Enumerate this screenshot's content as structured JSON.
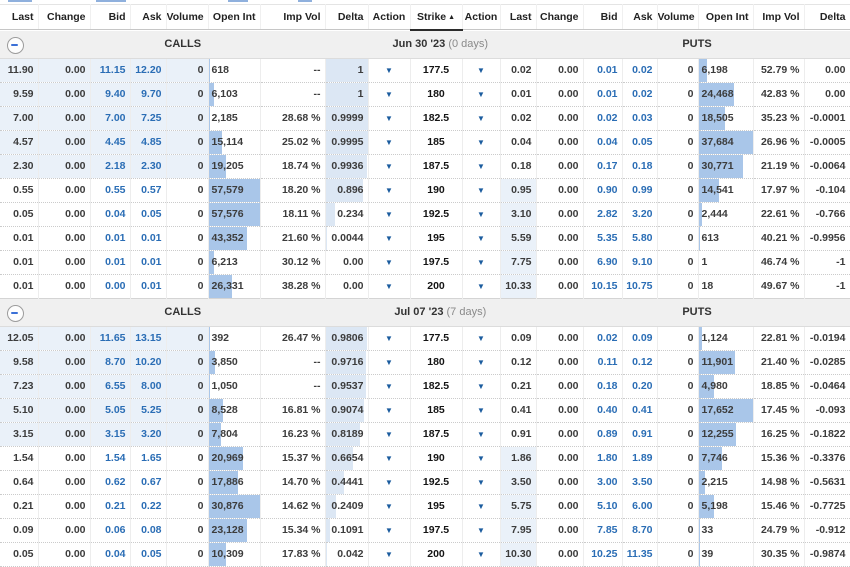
{
  "table": {
    "columns": [
      "Last",
      "Change",
      "Bid",
      "Ask",
      "Volume",
      "Open Int",
      "Imp Vol",
      "Delta",
      "Action",
      "Strike",
      "Action",
      "Last",
      "Change",
      "Bid",
      "Ask",
      "Volume",
      "Open Int",
      "Imp Vol",
      "Delta"
    ],
    "sort_column": "Strike",
    "sort_indicator": "▲"
  },
  "icons": {
    "action_dropdown": "▼"
  },
  "colors": {
    "bid_ask_text": "#2a6db5",
    "open_int_bar": "#a9c6e9",
    "delta_bar": "#dce7f4",
    "itm_highlight": "#eaf1f9",
    "action_arrow": "#1b5c9e",
    "section_header_bg": "#f0f0f0"
  },
  "groups": [
    {
      "calls_label": "CALLS",
      "puts_label": "PUTS",
      "expiry": "Jun 30 '23",
      "days_to_expiry": "(0 days)",
      "rows": [
        {
          "call": {
            "last": "11.90",
            "change": "0.00",
            "bid": "11.15",
            "ask": "12.20",
            "volume": "0",
            "open_int": "618",
            "imp_vol": "--",
            "delta": "1"
          },
          "call_itm": true,
          "strike": "177.5",
          "put": {
            "last": "0.02",
            "change": "0.00",
            "bid": "0.01",
            "ask": "0.02",
            "volume": "0",
            "open_int": "6,198",
            "imp_vol": "52.79 %",
            "delta": "0.00"
          },
          "put_itm": false
        },
        {
          "call": {
            "last": "9.59",
            "change": "0.00",
            "bid": "9.40",
            "ask": "9.70",
            "volume": "0",
            "open_int": "6,103",
            "imp_vol": "--",
            "delta": "1"
          },
          "call_itm": true,
          "strike": "180",
          "put": {
            "last": "0.01",
            "change": "0.00",
            "bid": "0.01",
            "ask": "0.02",
            "volume": "0",
            "open_int": "24,468",
            "imp_vol": "42.83 %",
            "delta": "0.00"
          },
          "put_itm": false
        },
        {
          "call": {
            "last": "7.00",
            "change": "0.00",
            "bid": "7.00",
            "ask": "7.25",
            "volume": "0",
            "open_int": "2,185",
            "imp_vol": "28.68 %",
            "delta": "0.9999"
          },
          "call_itm": true,
          "strike": "182.5",
          "put": {
            "last": "0.02",
            "change": "0.00",
            "bid": "0.02",
            "ask": "0.03",
            "volume": "0",
            "open_int": "18,505",
            "imp_vol": "35.23 %",
            "delta": "-0.0001"
          },
          "put_itm": false
        },
        {
          "call": {
            "last": "4.57",
            "change": "0.00",
            "bid": "4.45",
            "ask": "4.85",
            "volume": "0",
            "open_int": "15,114",
            "imp_vol": "25.02 %",
            "delta": "0.9995"
          },
          "call_itm": true,
          "strike": "185",
          "put": {
            "last": "0.04",
            "change": "0.00",
            "bid": "0.04",
            "ask": "0.05",
            "volume": "0",
            "open_int": "37,684",
            "imp_vol": "26.96 %",
            "delta": "-0.0005"
          },
          "put_itm": false
        },
        {
          "call": {
            "last": "2.30",
            "change": "0.00",
            "bid": "2.18",
            "ask": "2.30",
            "volume": "0",
            "open_int": "19,205",
            "imp_vol": "18.74 %",
            "delta": "0.9936"
          },
          "call_itm": true,
          "strike": "187.5",
          "put": {
            "last": "0.18",
            "change": "0.00",
            "bid": "0.17",
            "ask": "0.18",
            "volume": "0",
            "open_int": "30,771",
            "imp_vol": "21.19 %",
            "delta": "-0.0064"
          },
          "put_itm": false
        },
        {
          "call": {
            "last": "0.55",
            "change": "0.00",
            "bid": "0.55",
            "ask": "0.57",
            "volume": "0",
            "open_int": "57,579",
            "imp_vol": "18.20 %",
            "delta": "0.896"
          },
          "call_itm": false,
          "strike": "190",
          "put": {
            "last": "0.95",
            "change": "0.00",
            "bid": "0.90",
            "ask": "0.99",
            "volume": "0",
            "open_int": "14,541",
            "imp_vol": "17.97 %",
            "delta": "-0.104"
          },
          "put_itm": true
        },
        {
          "call": {
            "last": "0.05",
            "change": "0.00",
            "bid": "0.04",
            "ask": "0.05",
            "volume": "0",
            "open_int": "57,576",
            "imp_vol": "18.11 %",
            "delta": "0.234"
          },
          "call_itm": false,
          "strike": "192.5",
          "put": {
            "last": "3.10",
            "change": "0.00",
            "bid": "2.82",
            "ask": "3.20",
            "volume": "0",
            "open_int": "2,444",
            "imp_vol": "22.61 %",
            "delta": "-0.766"
          },
          "put_itm": true
        },
        {
          "call": {
            "last": "0.01",
            "change": "0.00",
            "bid": "0.01",
            "ask": "0.01",
            "volume": "0",
            "open_int": "43,352",
            "imp_vol": "21.60 %",
            "delta": "0.0044"
          },
          "call_itm": false,
          "strike": "195",
          "put": {
            "last": "5.59",
            "change": "0.00",
            "bid": "5.35",
            "ask": "5.80",
            "volume": "0",
            "open_int": "613",
            "imp_vol": "40.21 %",
            "delta": "-0.9956"
          },
          "put_itm": true
        },
        {
          "call": {
            "last": "0.01",
            "change": "0.00",
            "bid": "0.01",
            "ask": "0.01",
            "volume": "0",
            "open_int": "6,213",
            "imp_vol": "30.12 %",
            "delta": "0.00"
          },
          "call_itm": false,
          "strike": "197.5",
          "put": {
            "last": "7.75",
            "change": "0.00",
            "bid": "6.90",
            "ask": "9.10",
            "volume": "0",
            "open_int": "1",
            "imp_vol": "46.74 %",
            "delta": "-1"
          },
          "put_itm": true
        },
        {
          "call": {
            "last": "0.01",
            "change": "0.00",
            "bid": "0.00",
            "ask": "0.01",
            "volume": "0",
            "open_int": "26,331",
            "imp_vol": "38.28 %",
            "delta": "0.00"
          },
          "call_itm": false,
          "strike": "200",
          "put": {
            "last": "10.33",
            "change": "0.00",
            "bid": "10.15",
            "ask": "10.75",
            "volume": "0",
            "open_int": "18",
            "imp_vol": "49.67 %",
            "delta": "-1"
          },
          "put_itm": true
        }
      ]
    },
    {
      "calls_label": "CALLS",
      "puts_label": "PUTS",
      "expiry": "Jul 07 '23",
      "days_to_expiry": "(7 days)",
      "rows": [
        {
          "call": {
            "last": "12.05",
            "change": "0.00",
            "bid": "11.65",
            "ask": "13.15",
            "volume": "0",
            "open_int": "392",
            "imp_vol": "26.47 %",
            "delta": "0.9806"
          },
          "call_itm": true,
          "strike": "177.5",
          "put": {
            "last": "0.09",
            "change": "0.00",
            "bid": "0.02",
            "ask": "0.09",
            "volume": "0",
            "open_int": "1,124",
            "imp_vol": "22.81 %",
            "delta": "-0.0194"
          },
          "put_itm": false
        },
        {
          "call": {
            "last": "9.58",
            "change": "0.00",
            "bid": "8.70",
            "ask": "10.20",
            "volume": "0",
            "open_int": "3,850",
            "imp_vol": "--",
            "delta": "0.9716"
          },
          "call_itm": true,
          "strike": "180",
          "put": {
            "last": "0.12",
            "change": "0.00",
            "bid": "0.11",
            "ask": "0.12",
            "volume": "0",
            "open_int": "11,901",
            "imp_vol": "21.40 %",
            "delta": "-0.0285"
          },
          "put_itm": false
        },
        {
          "call": {
            "last": "7.23",
            "change": "0.00",
            "bid": "6.55",
            "ask": "8.00",
            "volume": "0",
            "open_int": "1,050",
            "imp_vol": "--",
            "delta": "0.9537"
          },
          "call_itm": true,
          "strike": "182.5",
          "put": {
            "last": "0.21",
            "change": "0.00",
            "bid": "0.18",
            "ask": "0.20",
            "volume": "0",
            "open_int": "4,980",
            "imp_vol": "18.85 %",
            "delta": "-0.0464"
          },
          "put_itm": false
        },
        {
          "call": {
            "last": "5.10",
            "change": "0.00",
            "bid": "5.05",
            "ask": "5.25",
            "volume": "0",
            "open_int": "8,528",
            "imp_vol": "16.81 %",
            "delta": "0.9074"
          },
          "call_itm": true,
          "strike": "185",
          "put": {
            "last": "0.41",
            "change": "0.00",
            "bid": "0.40",
            "ask": "0.41",
            "volume": "0",
            "open_int": "17,652",
            "imp_vol": "17.45 %",
            "delta": "-0.093"
          },
          "put_itm": false
        },
        {
          "call": {
            "last": "3.15",
            "change": "0.00",
            "bid": "3.15",
            "ask": "3.20",
            "volume": "0",
            "open_int": "7,804",
            "imp_vol": "16.23 %",
            "delta": "0.8189"
          },
          "call_itm": true,
          "strike": "187.5",
          "put": {
            "last": "0.91",
            "change": "0.00",
            "bid": "0.89",
            "ask": "0.91",
            "volume": "0",
            "open_int": "12,255",
            "imp_vol": "16.25 %",
            "delta": "-0.1822"
          },
          "put_itm": false
        },
        {
          "call": {
            "last": "1.54",
            "change": "0.00",
            "bid": "1.54",
            "ask": "1.65",
            "volume": "0",
            "open_int": "20,969",
            "imp_vol": "15.37 %",
            "delta": "0.6654"
          },
          "call_itm": false,
          "strike": "190",
          "put": {
            "last": "1.86",
            "change": "0.00",
            "bid": "1.80",
            "ask": "1.89",
            "volume": "0",
            "open_int": "7,746",
            "imp_vol": "15.36 %",
            "delta": "-0.3376"
          },
          "put_itm": true
        },
        {
          "call": {
            "last": "0.64",
            "change": "0.00",
            "bid": "0.62",
            "ask": "0.67",
            "volume": "0",
            "open_int": "17,886",
            "imp_vol": "14.70 %",
            "delta": "0.4441"
          },
          "call_itm": false,
          "strike": "192.5",
          "put": {
            "last": "3.50",
            "change": "0.00",
            "bid": "3.00",
            "ask": "3.50",
            "volume": "0",
            "open_int": "2,215",
            "imp_vol": "14.98 %",
            "delta": "-0.5631"
          },
          "put_itm": true
        },
        {
          "call": {
            "last": "0.21",
            "change": "0.00",
            "bid": "0.21",
            "ask": "0.22",
            "volume": "0",
            "open_int": "30,876",
            "imp_vol": "14.62 %",
            "delta": "0.2409"
          },
          "call_itm": false,
          "strike": "195",
          "put": {
            "last": "5.75",
            "change": "0.00",
            "bid": "5.10",
            "ask": "6.00",
            "volume": "0",
            "open_int": "5,198",
            "imp_vol": "15.46 %",
            "delta": "-0.7725"
          },
          "put_itm": true
        },
        {
          "call": {
            "last": "0.09",
            "change": "0.00",
            "bid": "0.06",
            "ask": "0.08",
            "volume": "0",
            "open_int": "23,128",
            "imp_vol": "15.34 %",
            "delta": "0.1091"
          },
          "call_itm": false,
          "strike": "197.5",
          "put": {
            "last": "7.95",
            "change": "0.00",
            "bid": "7.85",
            "ask": "8.70",
            "volume": "0",
            "open_int": "33",
            "imp_vol": "24.79 %",
            "delta": "-0.912"
          },
          "put_itm": true
        },
        {
          "call": {
            "last": "0.05",
            "change": "0.00",
            "bid": "0.04",
            "ask": "0.05",
            "volume": "0",
            "open_int": "10,309",
            "imp_vol": "17.83 %",
            "delta": "0.042"
          },
          "call_itm": false,
          "strike": "200",
          "put": {
            "last": "10.30",
            "change": "0.00",
            "bid": "10.25",
            "ask": "11.35",
            "volume": "0",
            "open_int": "39",
            "imp_vol": "30.35 %",
            "delta": "-0.9874"
          },
          "put_itm": true
        }
      ]
    }
  ]
}
